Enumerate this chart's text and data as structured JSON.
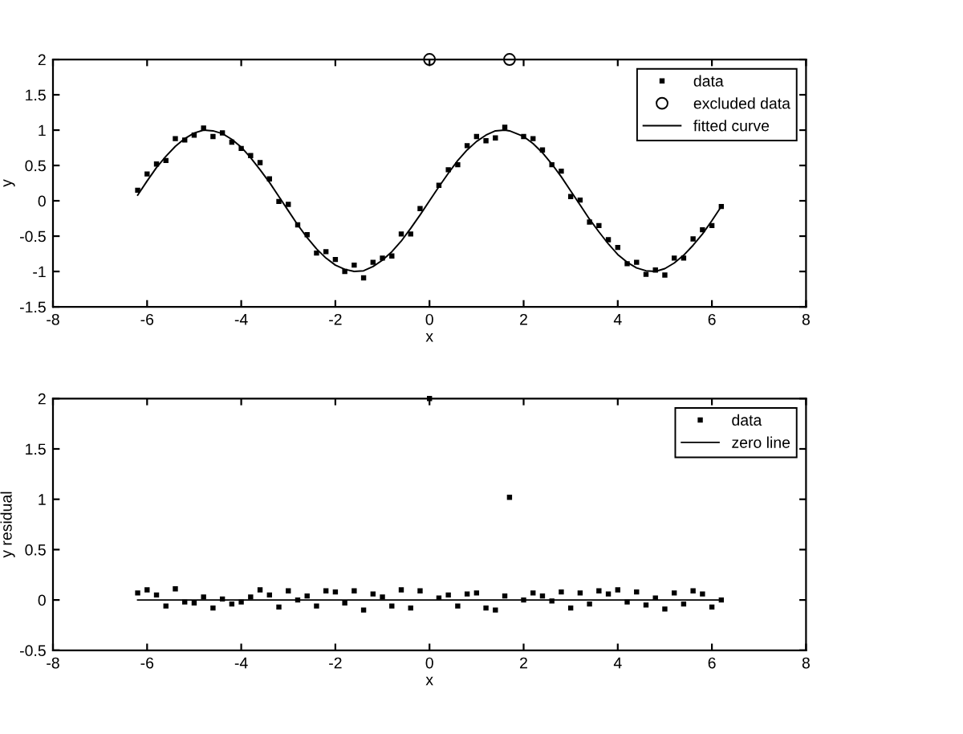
{
  "chart_data": [
    {
      "type": "scatter",
      "xlabel": "x",
      "ylabel": "y",
      "xlim": [
        -8,
        8
      ],
      "xticks": [
        -8,
        -6,
        -4,
        -2,
        0,
        2,
        4,
        6,
        8
      ],
      "ylim": [
        -1.5,
        2
      ],
      "yticks": [
        -1.5,
        -1,
        -0.5,
        0,
        0.5,
        1,
        1.5,
        2
      ],
      "grid": false,
      "legend": "top right",
      "series": [
        {
          "name": "data",
          "type": "scatter",
          "marker": "square",
          "color": "#000000",
          "x": [
            -6.2,
            -6.0,
            -5.8,
            -5.6,
            -5.4,
            -5.2,
            -5.0,
            -4.8,
            -4.6,
            -4.4,
            -4.2,
            -4.0,
            -3.8,
            -3.6,
            -3.4,
            -3.2,
            -3.0,
            -2.8,
            -2.6,
            -2.4,
            -2.2,
            -2.0,
            -1.8,
            -1.6,
            -1.4,
            -1.2,
            -1.0,
            -0.8,
            -0.6,
            -0.4,
            -0.2,
            0.0,
            0.2,
            0.4,
            0.6,
            0.8,
            1.0,
            1.2,
            1.4,
            1.6,
            1.7,
            2.0,
            2.2,
            2.4,
            2.6,
            2.8,
            3.0,
            3.2,
            3.4,
            3.6,
            3.8,
            4.0,
            4.2,
            4.4,
            4.6,
            4.8,
            5.0,
            5.2,
            5.4,
            5.6,
            5.8,
            6.0,
            6.2
          ],
          "values": [
            0.15,
            0.38,
            0.52,
            0.57,
            0.88,
            0.86,
            0.93,
            1.03,
            0.91,
            0.96,
            0.83,
            0.74,
            0.64,
            0.54,
            0.31,
            -0.01,
            -0.05,
            -0.34,
            -0.48,
            -0.74,
            -0.72,
            -0.83,
            -1.0,
            -0.91,
            -1.09,
            -0.87,
            -0.81,
            -0.78,
            -0.47,
            -0.47,
            -0.11,
            null,
            0.22,
            0.44,
            0.51,
            0.78,
            0.91,
            0.85,
            0.89,
            1.04,
            null,
            0.91,
            0.88,
            0.72,
            0.51,
            0.42,
            0.06,
            0.01,
            -0.3,
            -0.35,
            -0.55,
            -0.66,
            -0.89,
            -0.87,
            -1.04,
            -0.98,
            -1.05,
            -0.81,
            -0.81,
            -0.54,
            -0.41,
            -0.35,
            -0.08
          ]
        },
        {
          "name": "excluded data",
          "type": "scatter",
          "marker": "circle",
          "color": "#000000",
          "x": [
            0.0,
            1.7
          ],
          "values": [
            2,
            2
          ]
        },
        {
          "name": "fitted curve",
          "type": "line",
          "marker": "none",
          "line_style": "solid",
          "color": "#000000",
          "x": [
            -6.2,
            -6.0,
            -5.8,
            -5.6,
            -5.4,
            -5.2,
            -5.0,
            -4.8,
            -4.6,
            -4.4,
            -4.2,
            -4.0,
            -3.8,
            -3.6,
            -3.4,
            -3.2,
            -3.0,
            -2.8,
            -2.6,
            -2.4,
            -2.2,
            -2.0,
            -1.8,
            -1.6,
            -1.4,
            -1.2,
            -1.0,
            -0.8,
            -0.6,
            -0.4,
            -0.2,
            0.0,
            0.2,
            0.4,
            0.6,
            0.8,
            1.0,
            1.2,
            1.4,
            1.6,
            1.7,
            2.0,
            2.2,
            2.4,
            2.6,
            2.8,
            3.0,
            3.2,
            3.4,
            3.6,
            3.8,
            4.0,
            4.2,
            4.4,
            4.6,
            4.8,
            5.0,
            5.2,
            5.4,
            5.6,
            5.8,
            6.0,
            6.2
          ],
          "values": [
            0.08,
            0.28,
            0.47,
            0.63,
            0.77,
            0.88,
            0.96,
            1.0,
            0.99,
            0.95,
            0.87,
            0.76,
            0.61,
            0.44,
            0.26,
            0.06,
            -0.14,
            -0.34,
            -0.52,
            -0.68,
            -0.81,
            -0.91,
            -0.97,
            -1.0,
            -0.99,
            -0.93,
            -0.84,
            -0.72,
            -0.57,
            -0.39,
            -0.2,
            0.0,
            0.2,
            0.39,
            0.57,
            0.72,
            0.84,
            0.93,
            0.99,
            1.0,
            0.99,
            0.91,
            0.81,
            0.68,
            0.52,
            0.34,
            0.14,
            -0.06,
            -0.26,
            -0.44,
            -0.61,
            -0.76,
            -0.87,
            -0.95,
            -0.99,
            -1.0,
            -0.96,
            -0.88,
            -0.77,
            -0.63,
            -0.47,
            -0.28,
            -0.08
          ]
        }
      ]
    },
    {
      "type": "scatter",
      "xlabel": "x",
      "ylabel": "y residual",
      "xlim": [
        -8,
        8
      ],
      "xticks": [
        -8,
        -6,
        -4,
        -2,
        0,
        2,
        4,
        6,
        8
      ],
      "ylim": [
        -0.5,
        2
      ],
      "yticks": [
        -0.5,
        0,
        0.5,
        1,
        1.5,
        2
      ],
      "grid": false,
      "legend": "top right",
      "series": [
        {
          "name": "data",
          "type": "scatter",
          "marker": "square",
          "color": "#000000",
          "x": [
            -6.2,
            -6.0,
            -5.8,
            -5.6,
            -5.4,
            -5.2,
            -5.0,
            -4.8,
            -4.6,
            -4.4,
            -4.2,
            -4.0,
            -3.8,
            -3.6,
            -3.4,
            -3.2,
            -3.0,
            -2.8,
            -2.6,
            -2.4,
            -2.2,
            -2.0,
            -1.8,
            -1.6,
            -1.4,
            -1.2,
            -1.0,
            -0.8,
            -0.6,
            -0.4,
            -0.2,
            0.0,
            0.2,
            0.4,
            0.6,
            0.8,
            1.0,
            1.2,
            1.4,
            1.6,
            1.7,
            2.0,
            2.2,
            2.4,
            2.6,
            2.8,
            3.0,
            3.2,
            3.4,
            3.6,
            3.8,
            4.0,
            4.2,
            4.4,
            4.6,
            4.8,
            5.0,
            5.2,
            5.4,
            5.6,
            5.8,
            6.0,
            6.2
          ],
          "values": [
            0.07,
            0.1,
            0.05,
            -0.06,
            0.11,
            -0.02,
            -0.03,
            0.03,
            -0.08,
            0.01,
            -0.04,
            -0.02,
            0.03,
            0.1,
            0.05,
            -0.07,
            0.09,
            0.0,
            0.04,
            -0.06,
            0.09,
            0.08,
            -0.03,
            0.09,
            -0.1,
            0.06,
            0.03,
            -0.06,
            0.1,
            -0.08,
            0.09,
            2.0,
            0.02,
            0.05,
            -0.06,
            0.06,
            0.07,
            -0.08,
            -0.1,
            0.04,
            1.02,
            0.0,
            0.07,
            0.04,
            -0.01,
            0.08,
            -0.08,
            0.07,
            -0.04,
            0.09,
            0.06,
            0.1,
            -0.02,
            0.08,
            -0.05,
            0.02,
            -0.09,
            0.07,
            -0.04,
            0.09,
            0.06,
            -0.07,
            0.0
          ]
        },
        {
          "name": "zero line",
          "type": "line",
          "marker": "none",
          "line_style": "solid",
          "color": "#000000",
          "x": [
            -6.2,
            6.2
          ],
          "values": [
            0,
            0
          ]
        }
      ]
    }
  ]
}
